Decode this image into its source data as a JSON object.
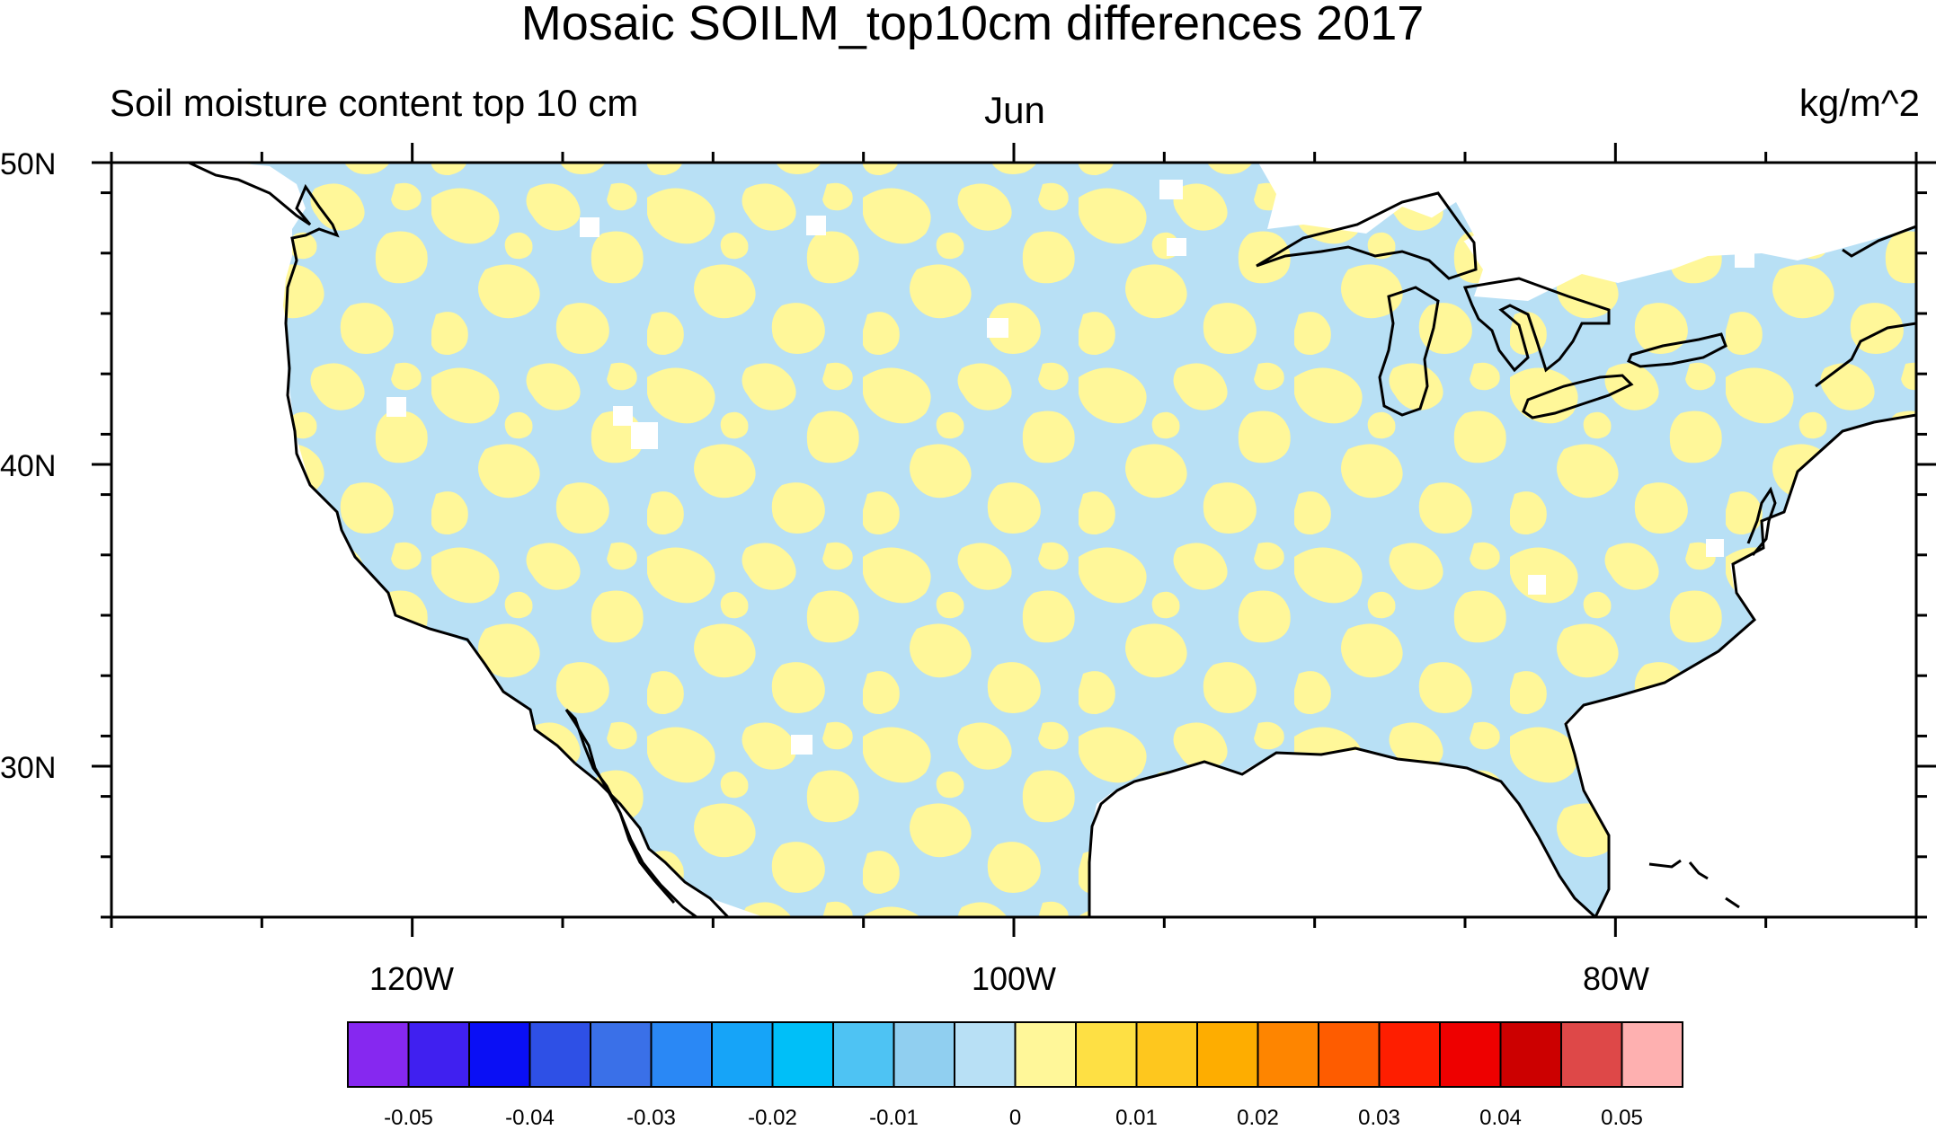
{
  "title": "Mosaic SOILM_top10cm differences 2017",
  "subtitle_left": "Soil moisture content top 10 cm",
  "subtitle_center": "Jun",
  "subtitle_right": "kg/m^2",
  "map": {
    "projection": "cylindrical equidistant",
    "region": "Contiguous United States",
    "lon_range": [
      -130,
      -70
    ],
    "lat_range": [
      25,
      50
    ],
    "lat_labels": [
      "50N",
      "40N",
      "30N"
    ],
    "lon_labels": [
      "120W",
      "100W",
      "80W"
    ],
    "field_pattern": "fine-scale mottled alternation of small negative (light blue) and small positive (pale yellow) differences over land; missing grid cells shown as small white squares",
    "dominant_colors": [
      "#b8e0f5",
      "#fff799"
    ]
  },
  "colorbar": {
    "colors": [
      "#8628f0",
      "#4020f0",
      "#0a0ff5",
      "#2e50e6",
      "#3a70e8",
      "#2a88f5",
      "#16a4f8",
      "#00bff8",
      "#4ec3f3",
      "#90cff0",
      "#b8e0f5",
      "#fff799",
      "#fee044",
      "#fec71e",
      "#fead00",
      "#fe8500",
      "#fe5c00",
      "#fe1e00",
      "#ee0000",
      "#cc0000",
      "#de4848",
      "#feb0b0"
    ],
    "labels": [
      "-0.05",
      "-0.04",
      "-0.03",
      "-0.02",
      "-0.01",
      "0",
      "0.01",
      "0.02",
      "0.03",
      "0.04",
      "0.05"
    ]
  }
}
